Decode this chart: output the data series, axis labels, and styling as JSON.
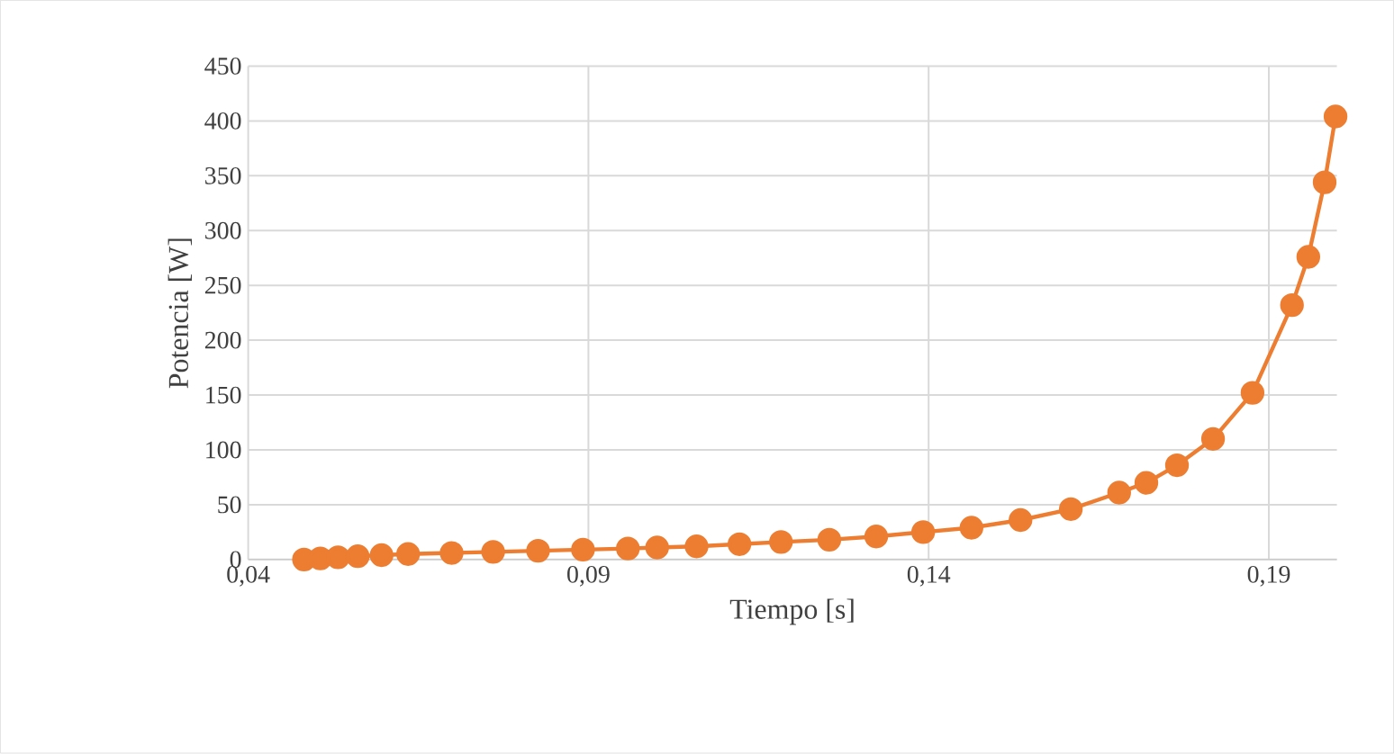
{
  "chart_data": {
    "type": "line",
    "xlabel": "Tiempo [s]",
    "ylabel": "Potencia [W]",
    "x": [
      0.0482,
      0.0506,
      0.0532,
      0.0561,
      0.0596,
      0.0635,
      0.0699,
      0.076,
      0.0826,
      0.0892,
      0.0958,
      0.1001,
      0.1059,
      0.1122,
      0.1183,
      0.1254,
      0.1323,
      0.1392,
      0.1463,
      0.1535,
      0.1609,
      0.168,
      0.172,
      0.1765,
      0.1818,
      0.1876,
      0.1934,
      0.1958,
      0.1982,
      0.1998
    ],
    "series": [
      {
        "color": "#ed7d31",
        "values": [
          0,
          1,
          2,
          3,
          4,
          5,
          6,
          7,
          8,
          9,
          10,
          11,
          12,
          14,
          16,
          18,
          21,
          25,
          29,
          36,
          46,
          61,
          70,
          86,
          110,
          152,
          232,
          276,
          344,
          404
        ]
      }
    ],
    "xlim": [
      0.04,
      0.2
    ],
    "ylim": [
      0,
      450
    ],
    "xticks": [
      {
        "value": 0.04,
        "label": "0,04"
      },
      {
        "value": 0.09,
        "label": "0,09"
      },
      {
        "value": 0.14,
        "label": "0,14"
      },
      {
        "value": 0.19,
        "label": "0,19"
      }
    ],
    "yticks": [
      0,
      50,
      100,
      150,
      200,
      250,
      300,
      350,
      400,
      450
    ],
    "grid": true,
    "marker": "circle",
    "line_style": "solid"
  }
}
